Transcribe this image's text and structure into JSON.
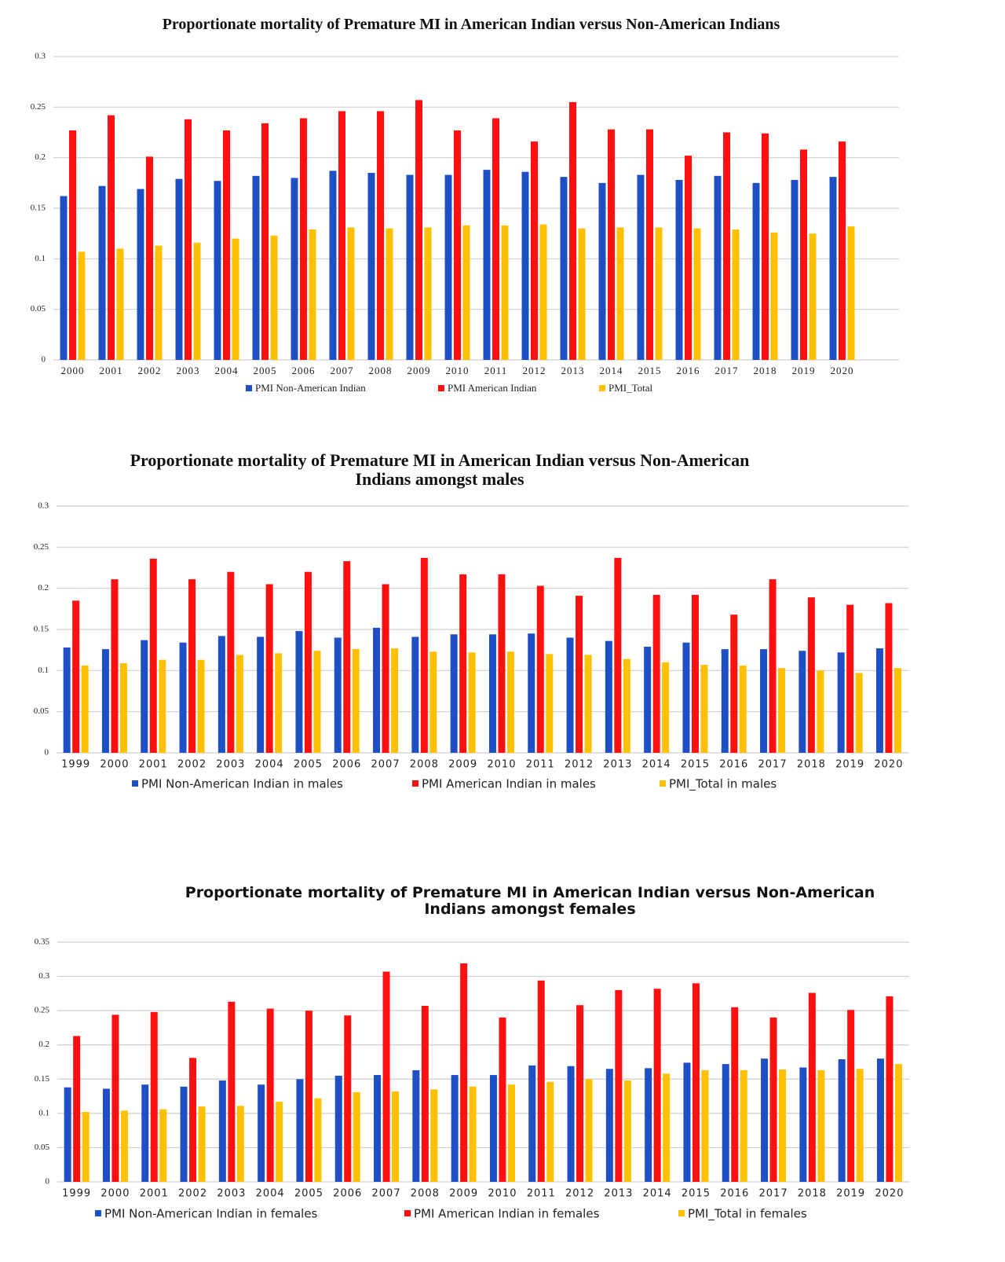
{
  "chart_data": [
    {
      "type": "bar",
      "title": "Proportionate mortality of Premature MI in American Indian versus Non-American Indians",
      "categories": [
        "2000",
        "2001",
        "2002",
        "2003",
        "2004",
        "2005",
        "2006",
        "2007",
        "2008",
        "2009",
        "2010",
        "2011",
        "2012",
        "2013",
        "2014",
        "2015",
        "2016",
        "2017",
        "2018",
        "2019",
        "2020"
      ],
      "series": [
        {
          "name": "PMI Non-American Indian",
          "color": "#1f4fc4",
          "values": [
            0.162,
            0.172,
            0.169,
            0.179,
            0.177,
            0.182,
            0.18,
            0.187,
            0.185,
            0.183,
            0.183,
            0.188,
            0.186,
            0.181,
            0.175,
            0.183,
            0.178,
            0.182,
            0.175,
            0.178,
            0.181
          ]
        },
        {
          "name": "PMI American Indian",
          "color": "#ff1010",
          "values": [
            0.227,
            0.242,
            0.201,
            0.238,
            0.227,
            0.234,
            0.239,
            0.246,
            0.246,
            0.257,
            0.227,
            0.239,
            0.216,
            0.255,
            0.228,
            0.228,
            0.202,
            0.225,
            0.224,
            0.208,
            0.216
          ]
        },
        {
          "name": "PMI_Total",
          "color": "#ffc000",
          "values": [
            0.107,
            0.11,
            0.113,
            0.116,
            0.12,
            0.123,
            0.129,
            0.131,
            0.13,
            0.131,
            0.133,
            0.133,
            0.134,
            0.13,
            0.131,
            0.131,
            0.13,
            0.129,
            0.126,
            0.125,
            0.132
          ]
        }
      ],
      "ylim": [
        0,
        0.3
      ],
      "yticks": [
        0,
        0.05,
        0.1,
        0.15,
        0.2,
        0.25,
        0.3
      ],
      "grid": true,
      "legend": "bottom"
    },
    {
      "type": "bar",
      "title": "Proportionate mortality of Premature MI in American Indian versus Non-American Indians amongst males",
      "categories": [
        "1999",
        "2000",
        "2001",
        "2002",
        "2003",
        "2004",
        "2005",
        "2006",
        "2007",
        "2008",
        "2009",
        "2010",
        "2011",
        "2012",
        "2013",
        "2014",
        "2015",
        "2016",
        "2017",
        "2018",
        "2019",
        "2020"
      ],
      "series": [
        {
          "name": "PMI Non-American Indian in males",
          "color": "#1f4fc4",
          "values": [
            0.128,
            0.126,
            0.137,
            0.134,
            0.142,
            0.141,
            0.148,
            0.14,
            0.152,
            0.141,
            0.144,
            0.144,
            0.145,
            0.14,
            0.136,
            0.129,
            0.134,
            0.126,
            0.126,
            0.124,
            0.122,
            0.127
          ]
        },
        {
          "name": "PMI American Indian in males",
          "color": "#ff1010",
          "values": [
            0.185,
            0.211,
            0.236,
            0.211,
            0.22,
            0.205,
            0.22,
            0.233,
            0.205,
            0.237,
            0.217,
            0.217,
            0.203,
            0.191,
            0.237,
            0.192,
            0.192,
            0.168,
            0.211,
            0.189,
            0.18,
            0.182
          ]
        },
        {
          "name": "PMI_Total in males",
          "color": "#ffc000",
          "values": [
            0.106,
            0.109,
            0.113,
            0.113,
            0.119,
            0.121,
            0.124,
            0.126,
            0.127,
            0.123,
            0.122,
            0.123,
            0.12,
            0.119,
            0.114,
            0.11,
            0.107,
            0.106,
            0.103,
            0.1,
            0.097,
            0.103
          ]
        }
      ],
      "ylim": [
        0,
        0.3
      ],
      "yticks": [
        0,
        0.05,
        0.1,
        0.15,
        0.2,
        0.25,
        0.3
      ],
      "grid": true,
      "legend": "bottom"
    },
    {
      "type": "bar",
      "title": "Proportionate mortality of Premature MI in American Indian versus Non-American Indians amongst females",
      "categories": [
        "1999",
        "2000",
        "2001",
        "2002",
        "2003",
        "2004",
        "2005",
        "2006",
        "2007",
        "2008",
        "2009",
        "2010",
        "2011",
        "2012",
        "2013",
        "2014",
        "2015",
        "2016",
        "2017",
        "2018",
        "2019",
        "2020"
      ],
      "series": [
        {
          "name": "PMI Non-American Indian in females",
          "color": "#1f4fc4",
          "values": [
            0.138,
            0.136,
            0.142,
            0.139,
            0.148,
            0.142,
            0.15,
            0.155,
            0.156,
            0.163,
            0.156,
            0.156,
            0.17,
            0.169,
            0.165,
            0.166,
            0.174,
            0.172,
            0.18,
            0.167,
            0.179,
            0.18
          ]
        },
        {
          "name": "PMI American Indian in females",
          "color": "#ff1010",
          "values": [
            0.213,
            0.244,
            0.248,
            0.181,
            0.263,
            0.253,
            0.25,
            0.243,
            0.307,
            0.257,
            0.319,
            0.24,
            0.294,
            0.258,
            0.28,
            0.282,
            0.29,
            0.255,
            0.24,
            0.276,
            0.251,
            0.271
          ]
        },
        {
          "name": "PMI_Total in females",
          "color": "#ffc000",
          "values": [
            0.102,
            0.104,
            0.106,
            0.11,
            0.111,
            0.117,
            0.122,
            0.131,
            0.132,
            0.135,
            0.139,
            0.142,
            0.146,
            0.15,
            0.148,
            0.158,
            0.163,
            0.163,
            0.164,
            0.163,
            0.165,
            0.172
          ]
        }
      ],
      "ylim": [
        0,
        0.35
      ],
      "yticks": [
        0,
        0.05,
        0.1,
        0.15,
        0.2,
        0.25,
        0.3,
        0.35
      ],
      "grid": true,
      "legend": "bottom"
    }
  ]
}
